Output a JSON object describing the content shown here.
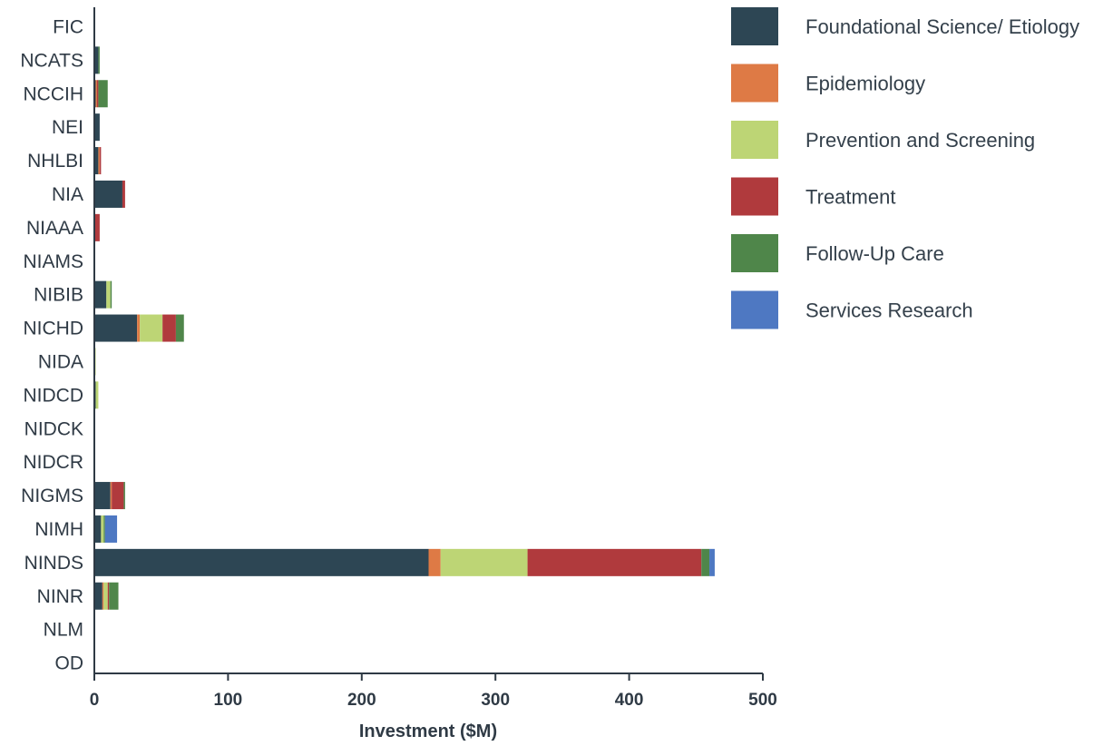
{
  "chart_data": {
    "type": "bar",
    "orientation": "horizontal",
    "stacked": true,
    "categories": [
      "FIC",
      "NCATS",
      "NCCIH",
      "NEI",
      "NHLBI",
      "NIA",
      "NIAAA",
      "NIAMS",
      "NIBIB",
      "NICHD",
      "NIDA",
      "NIDCD",
      "NIDCK",
      "NIDCR",
      "NIGMS",
      "NIMH",
      "NINDS",
      "NINR",
      "NLM",
      "OD"
    ],
    "series": [
      {
        "name": "Foundational Science/ Etiology",
        "color": "#2d4654",
        "values": [
          0.5,
          3,
          1,
          4,
          3,
          21,
          0,
          0,
          9,
          32,
          0,
          1,
          0,
          0,
          12,
          5,
          250,
          6,
          0,
          0
        ]
      },
      {
        "name": "Epidemiology",
        "color": "#de7a45",
        "values": [
          0,
          0,
          1,
          0,
          1,
          0,
          0,
          0,
          0,
          2,
          0,
          0,
          0,
          0,
          1,
          0,
          9,
          1,
          0,
          0
        ]
      },
      {
        "name": "Prevention and Screening",
        "color": "#bdd575",
        "values": [
          0,
          0,
          0,
          0,
          0,
          0,
          0,
          0,
          3,
          17,
          1,
          2,
          0,
          0,
          0,
          2,
          65,
          3,
          0,
          0
        ]
      },
      {
        "name": "Treatment",
        "color": "#b03a3d",
        "values": [
          0,
          0,
          1,
          0,
          1,
          2,
          4,
          0,
          0,
          10,
          0,
          0,
          0,
          0,
          9,
          0,
          130,
          1,
          0,
          0
        ]
      },
      {
        "name": "Follow-Up Care",
        "color": "#4f864a",
        "values": [
          0,
          1,
          7,
          0,
          0,
          0,
          0,
          0,
          1,
          6,
          0,
          0,
          0,
          0,
          1,
          1,
          6,
          7,
          0,
          0
        ]
      },
      {
        "name": "Services Research",
        "color": "#4e78c2",
        "values": [
          0,
          0,
          0,
          0,
          0,
          0,
          0,
          0,
          0,
          0,
          0,
          0,
          0,
          0,
          0,
          9,
          4,
          0,
          0,
          0
        ]
      }
    ],
    "xlabel": "Investment ($M)",
    "ylabel": "",
    "xlim": [
      0,
      500
    ],
    "xticks": [
      0,
      100,
      200,
      300,
      400,
      500
    ],
    "grid": false,
    "legend_position": "right"
  }
}
